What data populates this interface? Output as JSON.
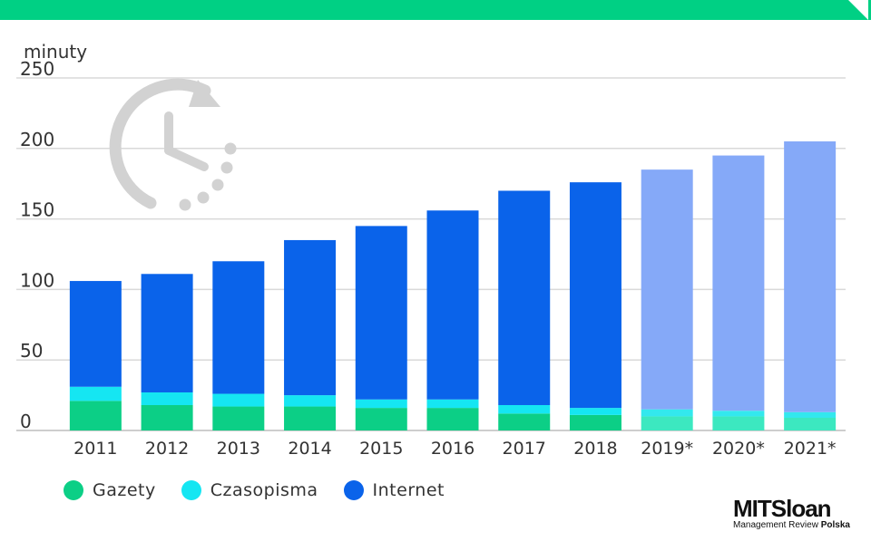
{
  "chart_data": {
    "type": "bar",
    "stacked": true,
    "ylabel": "minuty",
    "ylim": [
      0,
      250
    ],
    "yticks": [
      0,
      50,
      100,
      150,
      200,
      250
    ],
    "grid": true,
    "legend_position": "bottom-left",
    "categories": [
      "2011",
      "2012",
      "2013",
      "2014",
      "2015",
      "2016",
      "2017",
      "2018",
      "2019*",
      "2020*",
      "2021*"
    ],
    "forecast_categories": [
      "2019*",
      "2020*",
      "2021*"
    ],
    "series": [
      {
        "name": "Gazety",
        "color": "#0ccf86",
        "forecast_color": "#3ce8c0",
        "values": [
          21,
          18,
          17,
          17,
          16,
          16,
          12,
          11,
          10,
          10,
          9
        ]
      },
      {
        "name": "Czasopisma",
        "color": "#15e6f2",
        "forecast_color": "#33e8ee",
        "values": [
          10,
          9,
          9,
          8,
          6,
          6,
          6,
          5,
          5,
          4,
          4
        ]
      },
      {
        "name": "Internet",
        "color": "#0a63ea",
        "forecast_color": "#85a9f8",
        "values": [
          75,
          84,
          94,
          110,
          123,
          134,
          152,
          160,
          170,
          181,
          192
        ]
      }
    ]
  },
  "header": {
    "accent_color": "#00d084"
  },
  "decor": {
    "icon": "clock-icon",
    "icon_color": "#d2d2d2"
  },
  "logo": {
    "main": "MITSloan",
    "sub_prefix": "Management Review ",
    "sub_bold": "Polska"
  }
}
